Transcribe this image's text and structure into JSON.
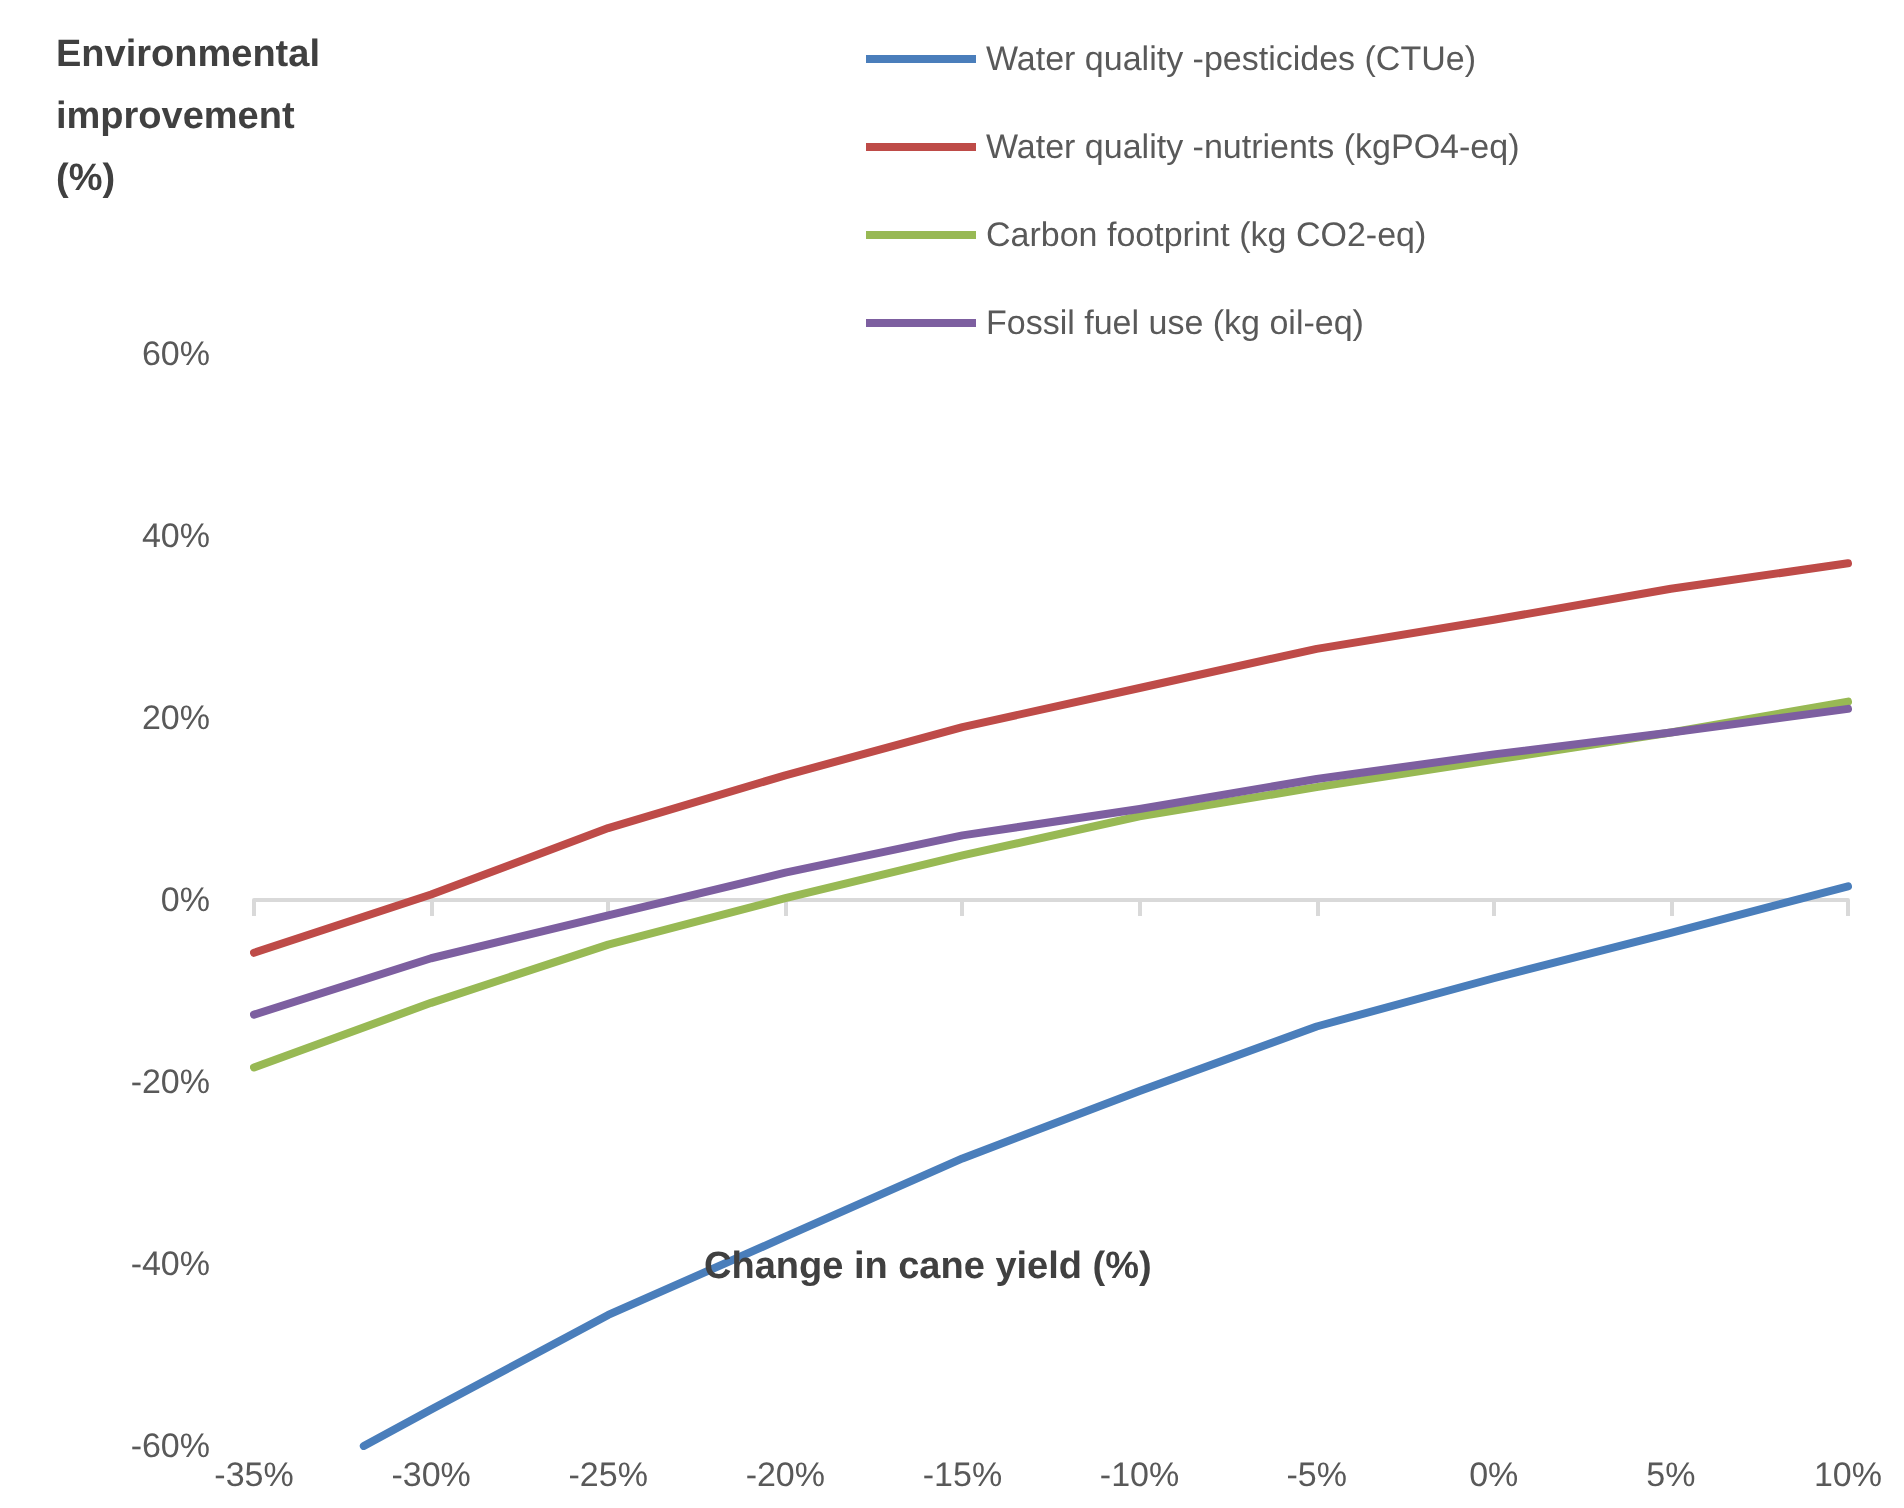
{
  "chart_data": {
    "type": "line",
    "xlabel": "Change in cane yield (%)",
    "ylabel": "Environmental\nimprovement\n(%)",
    "x": [
      -35,
      -30,
      -25,
      -20,
      -15,
      -10,
      -5,
      0,
      5,
      10
    ],
    "xlim": [
      -35,
      10
    ],
    "xticks": [
      {
        "value": -35,
        "label": "-35%"
      },
      {
        "value": -30,
        "label": "-30%"
      },
      {
        "value": -25,
        "label": "-25%"
      },
      {
        "value": -20,
        "label": "-20%"
      },
      {
        "value": -15,
        "label": "-15%"
      },
      {
        "value": -10,
        "label": "-10%"
      },
      {
        "value": -5,
        "label": "-5%"
      },
      {
        "value": 0,
        "label": "0%"
      },
      {
        "value": 5,
        "label": "5%"
      },
      {
        "value": 10,
        "label": "10%"
      }
    ],
    "ylim": [
      -60,
      60
    ],
    "yticks": [
      {
        "value": -60,
        "label": "-60%"
      },
      {
        "value": -40,
        "label": "-40%"
      },
      {
        "value": -20,
        "label": "-20%"
      },
      {
        "value": 0,
        "label": "0%"
      },
      {
        "value": 20,
        "label": "20%"
      },
      {
        "value": 40,
        "label": "40%"
      },
      {
        "value": 60,
        "label": "60%"
      }
    ],
    "series": [
      {
        "name": "Water quality -pesticides (CTUe)",
        "color": "#4a7ebb",
        "x": [
          -31.9,
          -30,
          -25,
          -20,
          -15,
          -10,
          -5,
          0,
          5,
          10
        ],
        "values": [
          -60,
          -56,
          -45.6,
          -37,
          -28.4,
          -21,
          -13.9,
          -8.6,
          -3.6,
          1.5
        ]
      },
      {
        "name": "Water quality -nutrients (kgPO4-eq)",
        "color": "#be4b48",
        "values": [
          -5.8,
          0.6,
          7.9,
          13.7,
          19,
          23.3,
          27.6,
          30.8,
          34.2,
          37
        ]
      },
      {
        "name": "Carbon footprint (kg CO2-eq)",
        "color": "#98b954",
        "values": [
          -18.4,
          -11.3,
          -4.9,
          0.2,
          4.9,
          9.2,
          12.4,
          15.4,
          18.4,
          21.8
        ]
      },
      {
        "name": "Fossil fuel use (kg oil-eq)",
        "color": "#7d5fa0",
        "values": [
          -12.6,
          -6.4,
          -1.7,
          3,
          7.1,
          10,
          13.3,
          16,
          18.4,
          21
        ]
      }
    ],
    "legend": "top right",
    "marker": "none",
    "line_style": "solid"
  }
}
